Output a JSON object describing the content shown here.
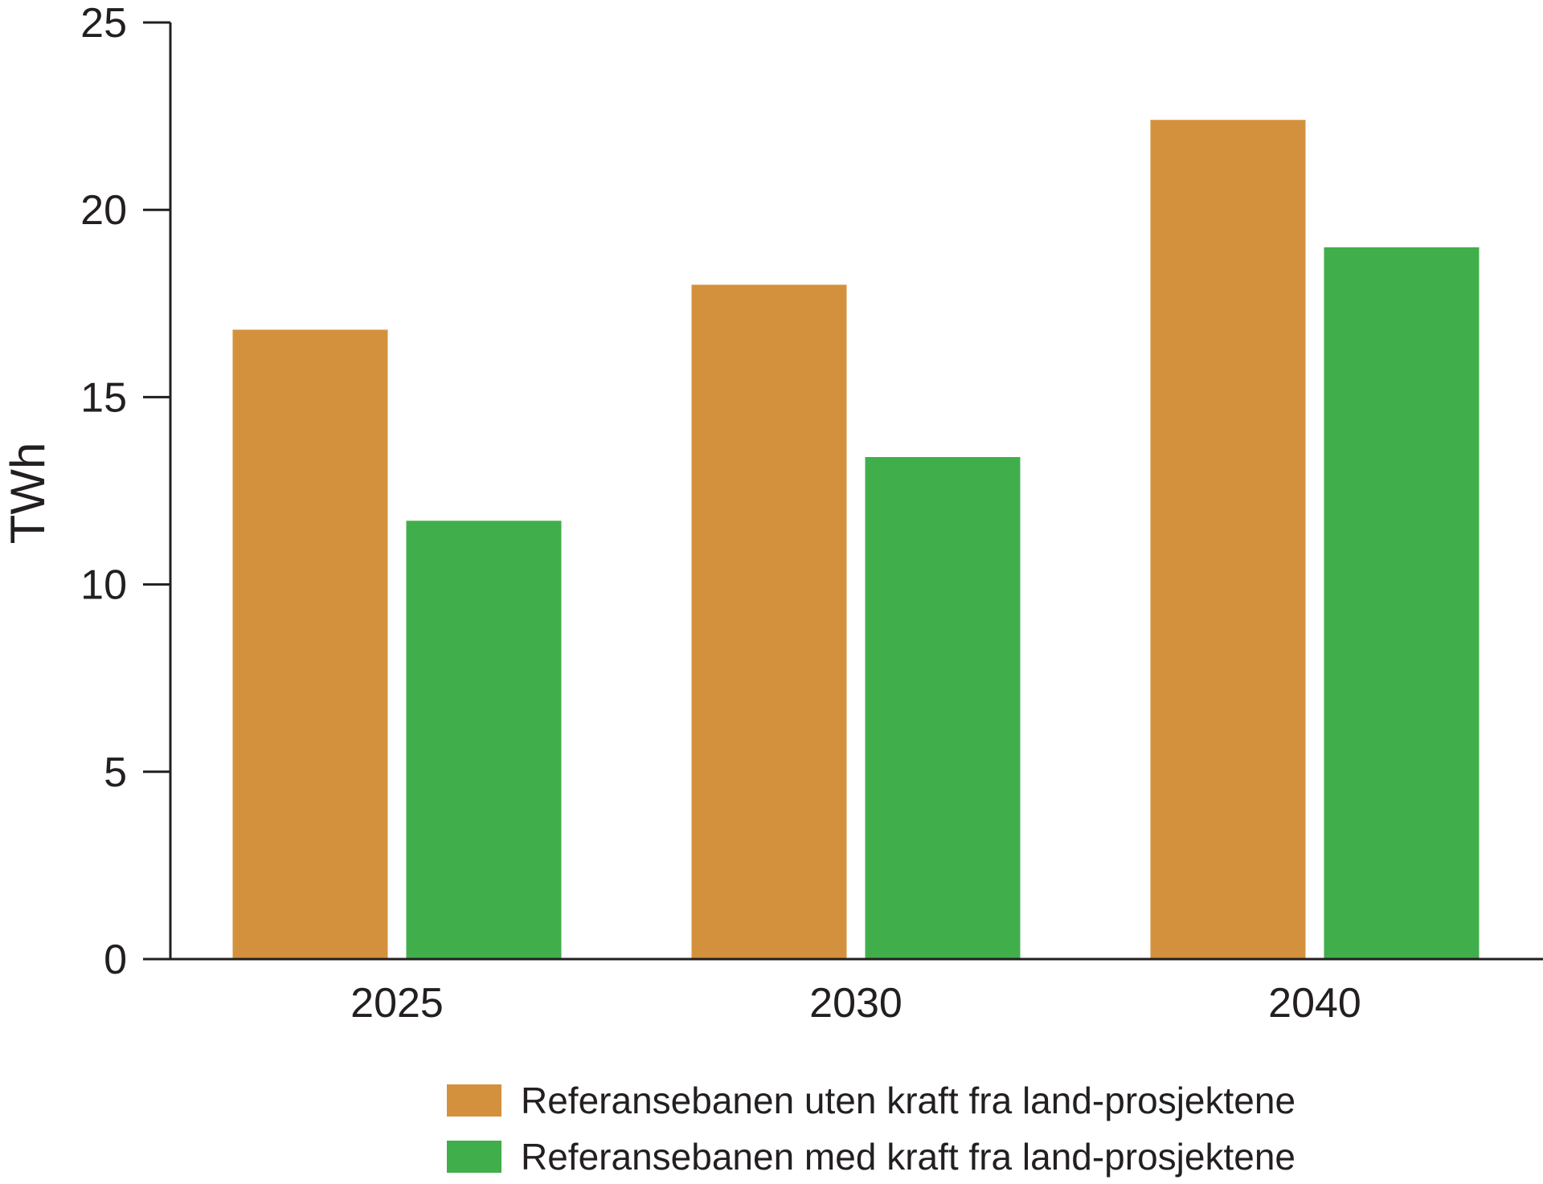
{
  "chart_data": {
    "type": "bar",
    "title": "",
    "xlabel": "",
    "ylabel": "TWh",
    "ylim": [
      0,
      25
    ],
    "yticks": [
      0,
      5,
      10,
      15,
      20,
      25
    ],
    "categories": [
      "2025",
      "2030",
      "2040"
    ],
    "series": [
      {
        "name": "Referansebanen uten kraft fra land-prosjektene",
        "color": "#d4913d",
        "values": [
          16.8,
          18.0,
          22.4
        ]
      },
      {
        "name": "Referansebanen med kraft fra land-prosjektene",
        "color": "#41ae4c",
        "values": [
          11.7,
          13.4,
          19.0
        ]
      }
    ],
    "grid": false,
    "legend_position": "bottom"
  }
}
